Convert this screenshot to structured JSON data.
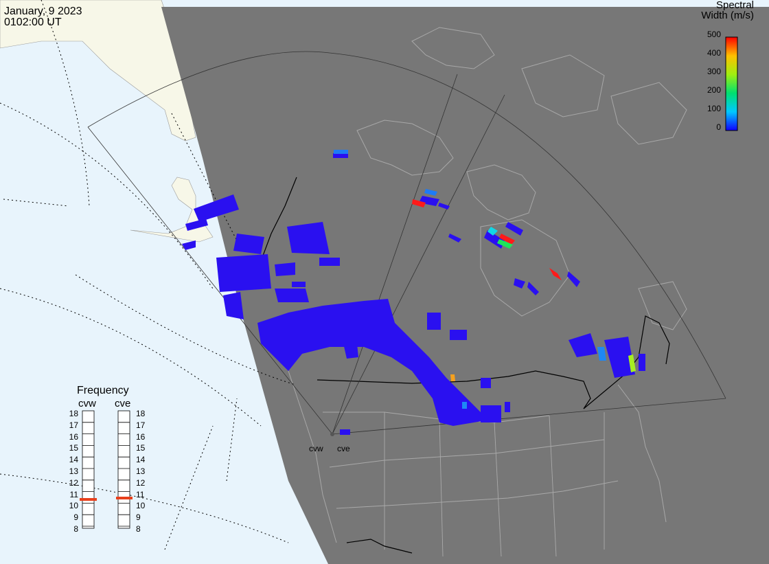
{
  "header": {
    "date": "January, 9 2023",
    "time": "0102:00 UT"
  },
  "colorbar": {
    "title_line1": "Spectral",
    "title_line2": "Width (m/s)",
    "ticks": [
      "500",
      "400",
      "300",
      "200",
      "100",
      "0"
    ],
    "range": [
      0,
      500
    ]
  },
  "frequency": {
    "title": "Frequency",
    "columns": [
      {
        "label": "cvw",
        "value_mhz": 10.6
      },
      {
        "label": "cve",
        "value_mhz": 10.7
      }
    ],
    "ticks": [
      "18",
      "17",
      "16",
      "15",
      "14",
      "13",
      "12",
      "11",
      "10",
      "9",
      "8"
    ],
    "marker_color": "#e8401c"
  },
  "sites": {
    "west": "cvw",
    "east": "cve"
  },
  "colors": {
    "ocean": "#e8f4fc",
    "land_day": "#f7f7e8",
    "night": "#777777",
    "echo": "#2a10f0",
    "grid": "#000000"
  }
}
